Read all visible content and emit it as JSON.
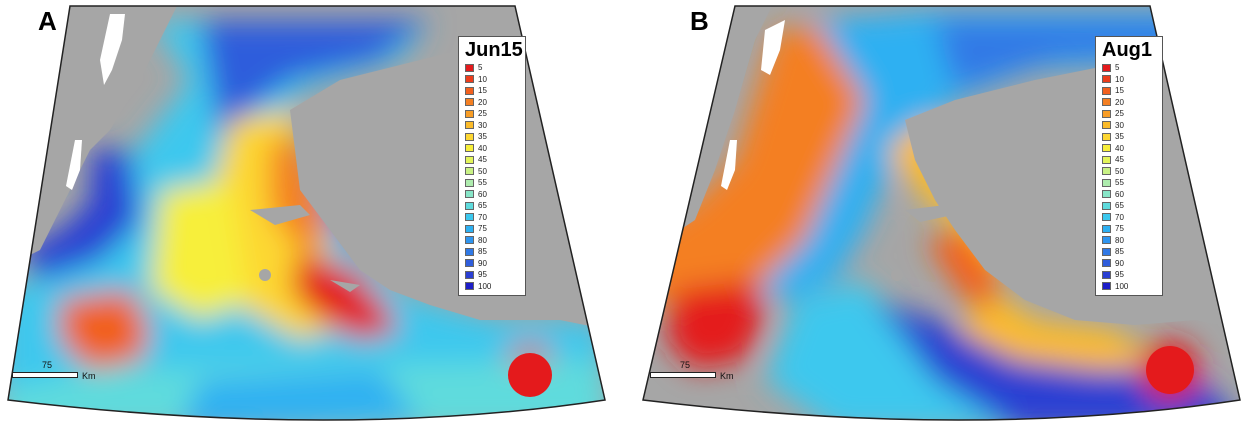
{
  "panels": [
    {
      "letter": "A",
      "legend_title": "Jun15",
      "scale_value": "75",
      "scale_unit": "Km"
    },
    {
      "letter": "B",
      "legend_title": "Aug1",
      "scale_value": "75",
      "scale_unit": "Km"
    }
  ],
  "legend_classes": [
    {
      "label": "5",
      "color": "#e41a1c"
    },
    {
      "label": "10",
      "color": "#ec3d1c"
    },
    {
      "label": "15",
      "color": "#f2601e"
    },
    {
      "label": "20",
      "color": "#f47f22"
    },
    {
      "label": "25",
      "color": "#f89d25"
    },
    {
      "label": "30",
      "color": "#fbbb2a"
    },
    {
      "label": "35",
      "color": "#fdd733"
    },
    {
      "label": "40",
      "color": "#f7ef3a"
    },
    {
      "label": "45",
      "color": "#e3f55a"
    },
    {
      "label": "50",
      "color": "#c9f285"
    },
    {
      "label": "55",
      "color": "#aeecae"
    },
    {
      "label": "60",
      "color": "#88e6c8"
    },
    {
      "label": "65",
      "color": "#5fdbdd"
    },
    {
      "label": "70",
      "color": "#3cc8ee"
    },
    {
      "label": "75",
      "color": "#2db0f2"
    },
    {
      "label": "80",
      "color": "#2f95ef"
    },
    {
      "label": "85",
      "color": "#3079e6"
    },
    {
      "label": "90",
      "color": "#2f5ddc"
    },
    {
      "label": "95",
      "color": "#2a3fd3"
    },
    {
      "label": "100",
      "color": "#1d1ec8"
    }
  ],
  "colors": {
    "land": "#a6a6a6",
    "frame": "#222222"
  }
}
